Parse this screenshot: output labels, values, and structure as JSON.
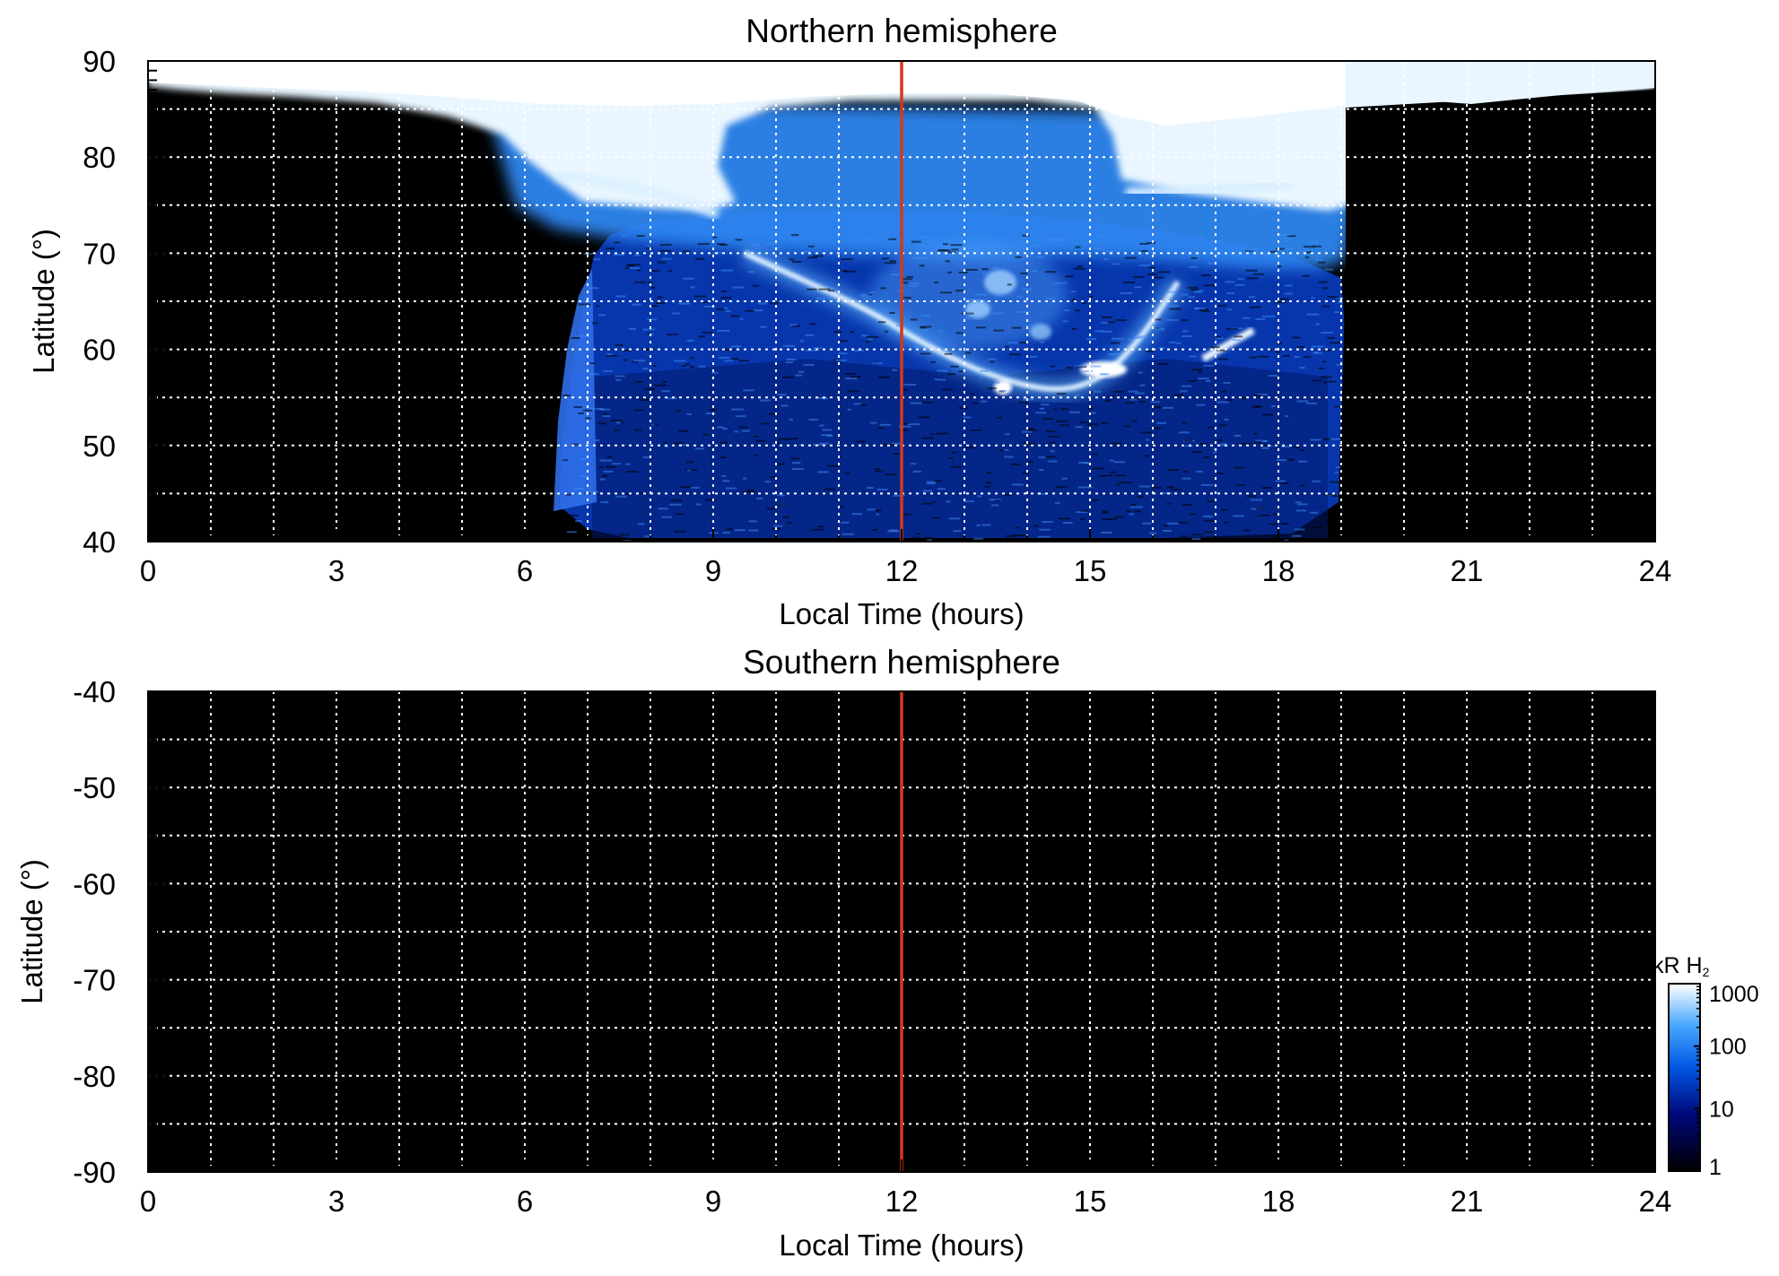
{
  "chart_data": [
    {
      "type": "heatmap",
      "title": "Northern hemisphere",
      "xlabel": "Local Time (hours)",
      "ylabel": "Latitude (°)",
      "xlim": [
        0,
        24
      ],
      "ylim": [
        40,
        90
      ],
      "x_ticks": [
        "0",
        "3",
        "6",
        "9",
        "12",
        "15",
        "18",
        "21",
        "24"
      ],
      "y_ticks": [
        "40",
        "50",
        "60",
        "70",
        "80",
        "90"
      ],
      "grid": true,
      "marker_line": {
        "x": 12,
        "color": "#d03a1c"
      },
      "features": {
        "observed_local_time_range": [
          6.6,
          19.0
        ],
        "bright_cap_above_latitude": 75,
        "main_oval": [
          {
            "x": 9.5,
            "y": 70
          },
          {
            "x": 10.5,
            "y": 67
          },
          {
            "x": 11.5,
            "y": 64
          },
          {
            "x": 12.5,
            "y": 60
          },
          {
            "x": 13.5,
            "y": 57
          },
          {
            "x": 14.5,
            "y": 55.5
          },
          {
            "x": 15.2,
            "y": 57
          },
          {
            "x": 15.8,
            "y": 61
          },
          {
            "x": 16.4,
            "y": 67
          }
        ],
        "secondary_arc": [
          {
            "x": 16.8,
            "y": 59
          },
          {
            "x": 17.6,
            "y": 62
          }
        ]
      }
    },
    {
      "type": "heatmap",
      "title": "Southern hemisphere",
      "xlabel": "Local Time (hours)",
      "ylabel": "Latitude (°)",
      "xlim": [
        0,
        24
      ],
      "ylim": [
        -90,
        -40
      ],
      "x_ticks": [
        "0",
        "3",
        "6",
        "9",
        "12",
        "15",
        "18",
        "21",
        "24"
      ],
      "y_ticks": [
        "-40",
        "-50",
        "-60",
        "-70",
        "-80",
        "-90"
      ],
      "grid": true,
      "marker_line": {
        "x": 12,
        "color": "#d03a1c"
      },
      "features": {
        "empty": true
      }
    }
  ],
  "colorbar": {
    "unit_main": "kR H",
    "unit_sub": "2",
    "scale": "log",
    "range": [
      1,
      1000
    ],
    "ticks": [
      "1",
      "10",
      "100",
      "1000"
    ],
    "colors": [
      "#000000",
      "#00087a",
      "#0055e0",
      "#4aa8ff",
      "#ffffff"
    ]
  }
}
